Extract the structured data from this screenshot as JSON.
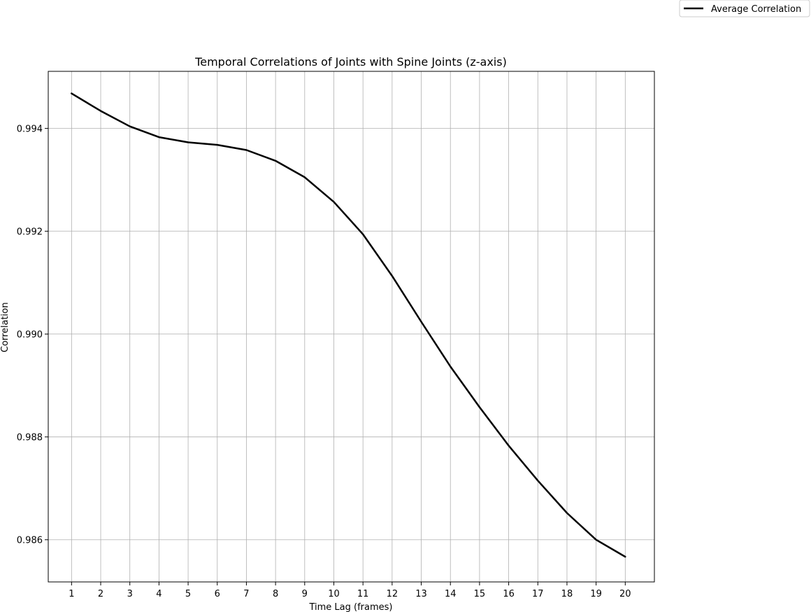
{
  "chart_data": {
    "type": "line",
    "title": "Temporal Correlations of Joints with Spine Joints (z-axis)",
    "xlabel": "Time Lag (frames)",
    "ylabel": "Correlation",
    "x": [
      1,
      2,
      3,
      4,
      5,
      6,
      7,
      8,
      9,
      10,
      11,
      12,
      13,
      14,
      15,
      16,
      17,
      18,
      19,
      20
    ],
    "x_tick_labels": [
      "1",
      "2",
      "3",
      "4",
      "5",
      "6",
      "7",
      "8",
      "9",
      "10",
      "11",
      "12",
      "13",
      "14",
      "15",
      "16",
      "17",
      "18",
      "19",
      "20"
    ],
    "y_ticks": [
      0.986,
      0.988,
      0.99,
      0.992,
      0.994
    ],
    "y_tick_labels": [
      "0.986",
      "0.988",
      "0.990",
      "0.992",
      "0.994"
    ],
    "xlim": [
      0.2,
      21.0
    ],
    "ylim": [
      0.98518,
      0.99511
    ],
    "grid": true,
    "legend_position": "top-right (outside figure corner)",
    "series": [
      {
        "name": "Average Correlation",
        "color": "#000000",
        "values": [
          0.99468,
          0.99434,
          0.99404,
          0.99383,
          0.99373,
          0.99368,
          0.99358,
          0.99337,
          0.99305,
          0.99257,
          0.99194,
          0.99113,
          0.99024,
          0.98937,
          0.98858,
          0.98783,
          0.98715,
          0.98652,
          0.986,
          0.98567
        ]
      }
    ]
  }
}
